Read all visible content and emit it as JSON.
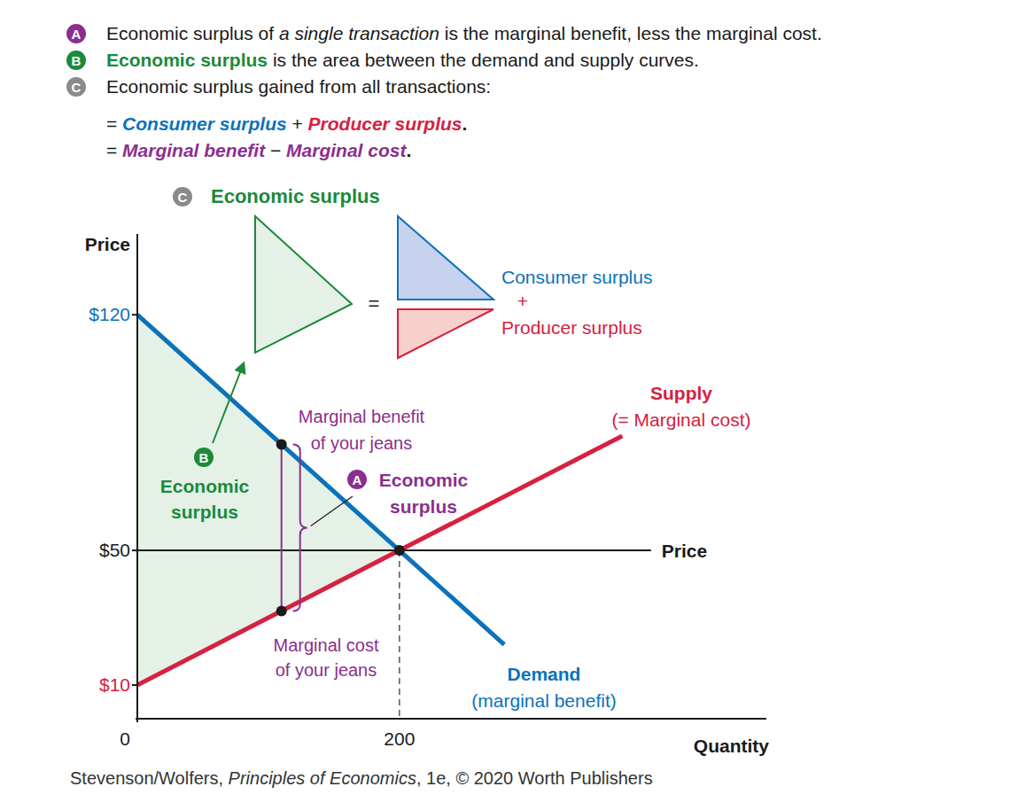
{
  "header": {
    "notes": [
      {
        "badge": "A",
        "lines": [
          [
            {
              "text": "Economic surplus of ",
              "style": "plain"
            },
            {
              "text": "a single transaction",
              "style": "italic"
            },
            {
              "text": " is the marginal benefit, less the marginal cost.",
              "style": "plain"
            }
          ]
        ]
      },
      {
        "badge": "B",
        "lines": [
          [
            {
              "text": "Economic surplus",
              "style": "bold-green"
            },
            {
              "text": " is the area between the demand and supply curves.",
              "style": "plain"
            }
          ]
        ]
      },
      {
        "badge": "C",
        "lines": [
          [
            {
              "text": "Economic surplus gained from all transactions:",
              "style": "plain"
            }
          ],
          [
            {
              "text": "= ",
              "style": "plain"
            },
            {
              "text": "Consumer surplus",
              "style": "bold-italic-blue"
            },
            {
              "text": " + ",
              "style": "plain"
            },
            {
              "text": "Producer surplus",
              "style": "bold-italic-red"
            },
            {
              "text": ".",
              "style": "bold"
            }
          ],
          [
            {
              "text": "= ",
              "style": "plain"
            },
            {
              "text": "Marginal benefit",
              "style": "bold-italic-purple"
            },
            {
              "text": " − ",
              "style": "plain"
            },
            {
              "text": "Marginal cost",
              "style": "bold-italic-purple"
            },
            {
              "text": ".",
              "style": "bold"
            }
          ]
        ]
      }
    ]
  },
  "chart_data": {
    "type": "line",
    "x_label": "Quantity",
    "y_label": "Price",
    "xlim": [
      0,
      480
    ],
    "ylim": [
      0,
      144
    ],
    "xticks": [
      0,
      200
    ],
    "yticks": [
      {
        "value": 10,
        "label": "$10"
      },
      {
        "value": 50,
        "label": "$50"
      },
      {
        "value": 120,
        "label": "$120"
      }
    ],
    "grid": false,
    "series": [
      {
        "name": "Demand",
        "sublabel": "(marginal benefit)",
        "color": "#0b72bb",
        "x": [
          0,
          200,
          280
        ],
        "values": [
          120,
          50,
          22
        ]
      },
      {
        "name": "Supply",
        "sublabel": "(= Marginal cost)",
        "color": "#d6213f",
        "x": [
          0,
          200,
          370
        ],
        "values": [
          10,
          50,
          84
        ]
      }
    ],
    "price_line": {
      "label": "Price",
      "value": 50,
      "x": [
        0,
        392
      ]
    },
    "equilibrium": {
      "x": 200,
      "value": 50
    },
    "area_label": {
      "badge": "B",
      "lines": [
        "Economic",
        "surplus"
      ]
    },
    "your_jeans": {
      "x": 110,
      "marginal_benefit": 81.5,
      "marginal_cost": 32,
      "benefit_label": [
        "Marginal benefit",
        "of your jeans"
      ],
      "cost_label": [
        "Marginal cost",
        "of your jeans"
      ],
      "badge": "A",
      "surplus_label": [
        "Economic",
        "surplus"
      ]
    },
    "surplus_diagram": {
      "badge": "C",
      "title": "Economic surplus",
      "equals": "=",
      "consumer": "Consumer surplus",
      "plus": "+",
      "producer": "Producer surplus"
    }
  },
  "footer": [
    {
      "text": "Stevenson/Wolfers, ",
      "style": "plain"
    },
    {
      "text": "Principles of Economics",
      "style": "italic"
    },
    {
      "text": ", 1e, © 2020 Worth Publishers",
      "style": "plain"
    }
  ]
}
